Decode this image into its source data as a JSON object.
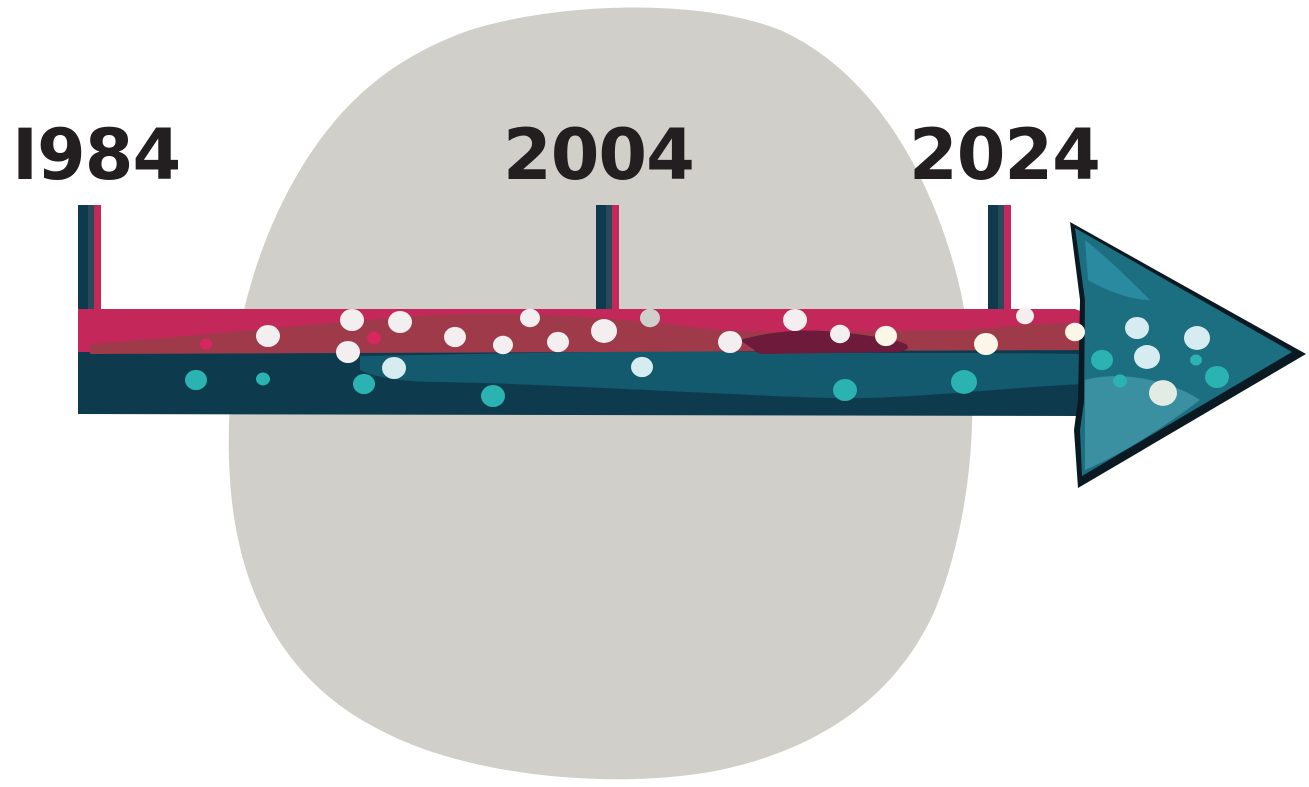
{
  "timeline": {
    "years": [
      "I984",
      "2004",
      "2024"
    ]
  },
  "colors": {
    "background": "#ffffff",
    "blob": "#d0cfca",
    "label_text": "#231f20",
    "arrow_top": "#c4285a",
    "arrow_top_dark": "#9e3a4a",
    "arrow_top_deep": "#6e1a3a",
    "arrow_bottom": "#0e3a4e",
    "arrow_bottom_mid": "#135a6e",
    "arrow_head": "#1b6f80",
    "arrow_head_light": "#3a8fa0",
    "dots_light": "#f3eef0",
    "dots_teal": "#2ab3b0",
    "dots_pale": "#d7ecf0",
    "post_pink": "#c4285a",
    "post_dark": "#0e3a4e"
  },
  "icons": {
    "arrow": "timeline-arrow-icon",
    "blob": "background-blob-shape"
  }
}
